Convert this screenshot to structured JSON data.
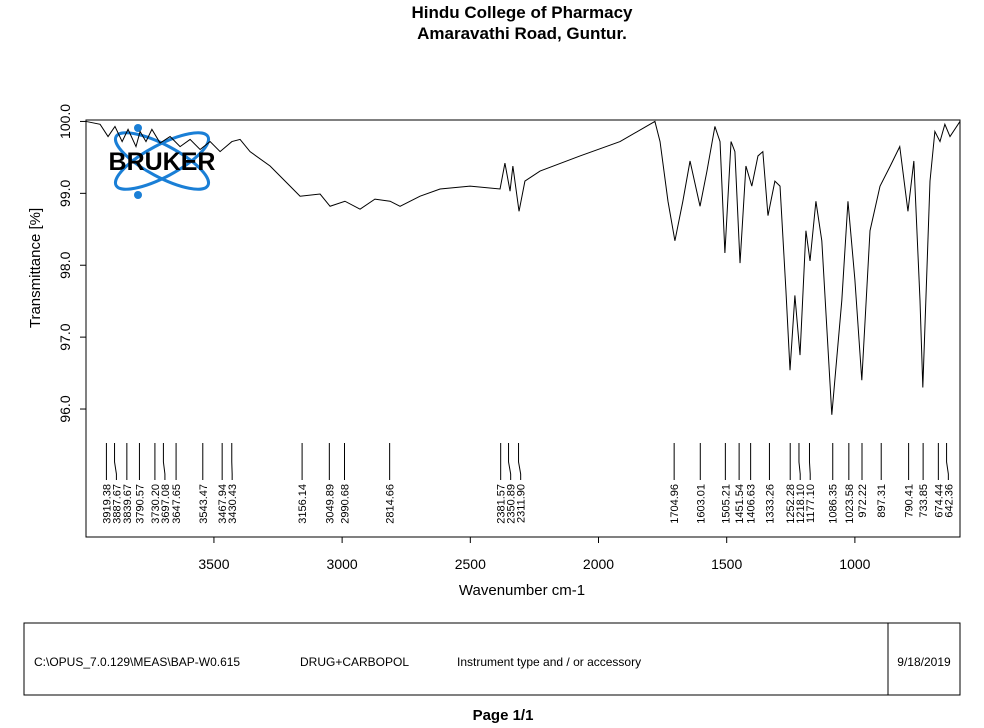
{
  "header": {
    "title": "Hindu College of Pharmacy",
    "subtitle": "Amaravathi Road, Guntur."
  },
  "logo": "BRUKER",
  "chart_data": {
    "type": "line",
    "y_label": "Transmittance [%]",
    "x_label": "Wavenumber cm-1",
    "xlim": [
      3999,
      590
    ],
    "ylim": [
      94.22,
      100.02
    ],
    "xticks": [
      3500,
      3000,
      2500,
      2000,
      1500,
      1000
    ],
    "yticks": [
      {
        "value": 96,
        "label": "96.0"
      },
      {
        "value": 97,
        "label": "97.0"
      },
      {
        "value": 98,
        "label": "98.0"
      },
      {
        "value": 99,
        "label": "99.0"
      },
      {
        "value": 100,
        "label": "100.0"
      }
    ],
    "x": [
      3999,
      3944,
      3913,
      3886,
      3858,
      3835,
      3804,
      3788,
      3765,
      3742,
      3710,
      3671,
      3632,
      3593,
      3554,
      3515,
      3476,
      3430,
      3398,
      3359,
      3281,
      3203,
      3164,
      3086,
      3047,
      2989,
      2930,
      2872,
      2813,
      2774,
      2696,
      2618,
      2501,
      2384,
      2365,
      2345,
      2334,
      2310,
      2287,
      2228,
      2072,
      1916,
      1780,
      1760,
      1729,
      1702,
      1671,
      1643,
      1604,
      1577,
      1546,
      1526,
      1507,
      1483,
      1468,
      1448,
      1425,
      1402,
      1378,
      1359,
      1339,
      1312,
      1292,
      1269,
      1253,
      1234,
      1214,
      1191,
      1175,
      1152,
      1129,
      1090,
      1051,
      1027,
      1000,
      973,
      941,
      902,
      862,
      825,
      793,
      770,
      746,
      735,
      707,
      688,
      668,
      649,
      629,
      590
    ],
    "series": [
      {
        "color": "#000000",
        "values": [
          100.0,
          99.96,
          99.79,
          99.93,
          99.72,
          99.89,
          99.65,
          99.86,
          99.72,
          99.89,
          99.7,
          99.79,
          99.65,
          99.75,
          99.61,
          99.72,
          99.58,
          99.72,
          99.75,
          99.58,
          99.38,
          99.1,
          98.96,
          98.99,
          98.82,
          98.89,
          98.78,
          98.92,
          98.89,
          98.82,
          98.96,
          99.06,
          99.1,
          99.06,
          99.42,
          99.03,
          99.38,
          98.75,
          99.17,
          99.31,
          99.52,
          99.72,
          100.0,
          99.72,
          98.89,
          98.34,
          98.89,
          99.45,
          98.82,
          99.31,
          99.93,
          99.72,
          98.17,
          99.72,
          99.58,
          98.03,
          99.38,
          99.1,
          99.52,
          99.58,
          98.69,
          99.17,
          99.1,
          97.65,
          96.54,
          97.58,
          96.75,
          98.48,
          98.06,
          98.89,
          98.34,
          95.92,
          97.51,
          98.89,
          97.8,
          96.4,
          98.48,
          99.1,
          99.38,
          99.65,
          98.75,
          99.45,
          97.51,
          96.3,
          99.17,
          99.86,
          99.72,
          99.96,
          99.79,
          100.0
        ]
      }
    ],
    "peaks": [
      3919.38,
      3887.67,
      3839.67,
      3790.57,
      {
        "value": 3730.2,
        "label": "3730.20"
      },
      3697.08,
      3647.65,
      3543.47,
      3467.94,
      3430.43,
      3156.14,
      3049.89,
      2990.68,
      2814.66,
      2381.57,
      2350.89,
      {
        "value": 2311.9,
        "label": "2311.90"
      },
      1704.96,
      1603.01,
      1505.21,
      1451.54,
      1406.63,
      1333.26,
      1252.28,
      {
        "value": 1218.1,
        "label": "1218.10"
      },
      {
        "value": 1177.1,
        "label": "1177.10"
      },
      1086.35,
      1023.58,
      972.22,
      897.31,
      790.41,
      733.85,
      674.44,
      642.36
    ]
  },
  "footer": {
    "path": "C:\\OPUS_7.0.129\\MEAS\\BAP-W0.615",
    "sample": "DRUG+CARBOPOL",
    "instrument": "Instrument type and / or accessory",
    "date": "9/18/2019",
    "page": "Page 1/1"
  }
}
